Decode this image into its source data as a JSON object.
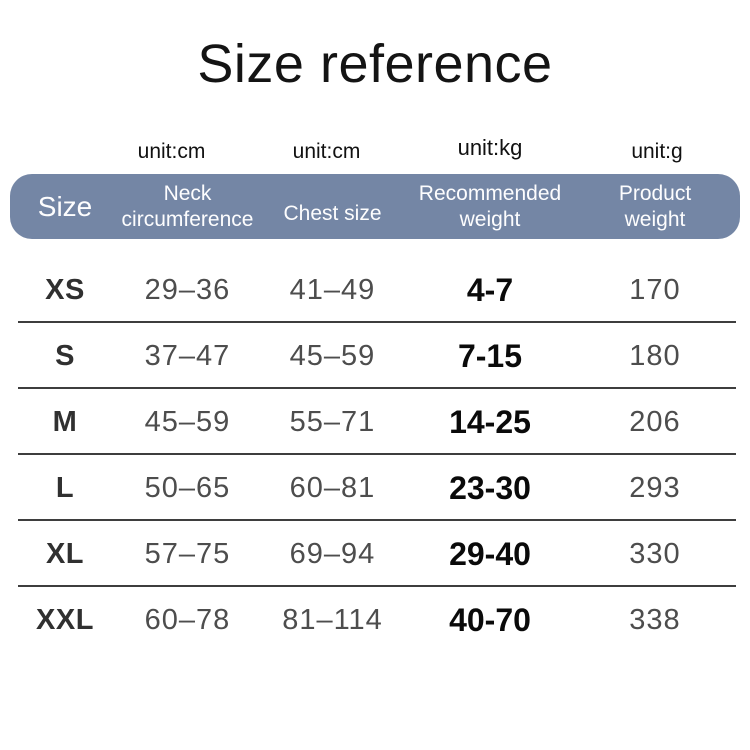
{
  "title": "Size reference",
  "table": {
    "unit_row": {
      "neck": "unit:cm",
      "chest": "unit:cm",
      "recommended": "unit:kg",
      "product": "unit:g"
    },
    "headers": {
      "size": "Size",
      "neck": "Neck circumference",
      "chest": "Chest size",
      "recommended": "Recommended weight",
      "product": "Product weight"
    },
    "rows": [
      {
        "size": "XS",
        "neck": "29–36",
        "chest": "41–49",
        "recommended": "4-7",
        "product": "170"
      },
      {
        "size": "S",
        "neck": "37–47",
        "chest": "45–59",
        "recommended": "7-15",
        "product": "180"
      },
      {
        "size": "M",
        "neck": "45–59",
        "chest": "55–71",
        "recommended": "14-25",
        "product": "206"
      },
      {
        "size": "L",
        "neck": "50–65",
        "chest": "60–81",
        "recommended": "23-30",
        "product": "293"
      },
      {
        "size": "XL",
        "neck": "57–75",
        "chest": "69–94",
        "recommended": "29-40",
        "product": "330"
      },
      {
        "size": "XXL",
        "neck": "60–78",
        "chest": "81–114",
        "recommended": "40-70",
        "product": "338"
      }
    ]
  },
  "chart_data": {
    "type": "table",
    "title": "Size reference",
    "columns": [
      {
        "label": "Size",
        "unit": ""
      },
      {
        "label": "Neck circumference",
        "unit": "unit:cm"
      },
      {
        "label": "Chest size",
        "unit": "unit:cm"
      },
      {
        "label": "Recommended weight",
        "unit": "unit:kg"
      },
      {
        "label": "Product weight",
        "unit": "unit:g"
      }
    ],
    "rows": [
      [
        "XS",
        "29–36",
        "41–49",
        "4-7",
        "170"
      ],
      [
        "S",
        "37–47",
        "45–59",
        "7-15",
        "180"
      ],
      [
        "M",
        "45–59",
        "55–71",
        "14-25",
        "206"
      ],
      [
        "L",
        "50–65",
        "60–81",
        "23-30",
        "293"
      ],
      [
        "XL",
        "57–75",
        "69–94",
        "29-40",
        "330"
      ],
      [
        "XXL",
        "60–78",
        "81–114",
        "40-70",
        "338"
      ]
    ]
  },
  "colors": {
    "header_bg": "#7486a5",
    "header_text": "#fdfdfe",
    "title_text": "#141414",
    "unit_text": "#111111",
    "size_text": "#303030",
    "value_text": "#4d4d4d",
    "recommended_text": "#0a0a0a",
    "separator": "#3e3e3e"
  }
}
